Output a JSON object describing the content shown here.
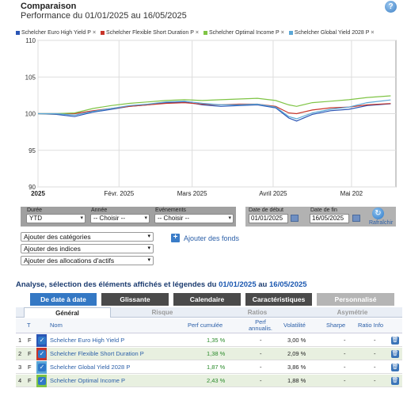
{
  "header": {
    "title": "Comparaison",
    "subtitle": "Performance du 01/01/2025 au 16/05/2025"
  },
  "legend": [
    {
      "name": "Schelcher Euro High Yield P",
      "color": "#2a55b5"
    },
    {
      "name": "Schelcher Flexible Short Duration P",
      "color": "#c8352a"
    },
    {
      "name": "Schelcher Optimal Income P",
      "color": "#7fc445"
    },
    {
      "name": "Schelcher Global Yield 2028 P",
      "color": "#5ba7d6"
    }
  ],
  "chart_data": {
    "type": "line",
    "ylim": [
      90,
      110
    ],
    "y_ticks": [
      "110",
      "105",
      "100",
      "95",
      "90"
    ],
    "x_ticks": [
      {
        "label": "2025",
        "bold": true
      },
      {
        "label": "Févr. 2025",
        "bold": false
      },
      {
        "label": "Mars 2025",
        "bold": false
      },
      {
        "label": "Avril 2025",
        "bold": false
      },
      {
        "label": "Mai 202",
        "bold": false
      }
    ],
    "grid": true,
    "x_dates": [
      "2025-01-01",
      "2025-01-08",
      "2025-01-15",
      "2025-01-22",
      "2025-01-29",
      "2025-02-05",
      "2025-02-12",
      "2025-02-19",
      "2025-02-26",
      "2025-03-05",
      "2025-03-12",
      "2025-03-19",
      "2025-03-26",
      "2025-04-02",
      "2025-04-07",
      "2025-04-10",
      "2025-04-16",
      "2025-04-23",
      "2025-04-30",
      "2025-05-07",
      "2025-05-16"
    ],
    "series": [
      {
        "name": "Schelcher Euro High Yield P",
        "color": "#2a55b5",
        "values": [
          100,
          99.9,
          99.6,
          100.2,
          100.6,
          101.0,
          101.2,
          101.5,
          101.6,
          101.2,
          101.0,
          101.1,
          101.2,
          100.8,
          99.4,
          99.0,
          99.9,
          100.4,
          100.6,
          101.1,
          101.35
        ]
      },
      {
        "name": "Schelcher Flexible Short Duration P",
        "color": "#c8352a",
        "values": [
          100,
          100.0,
          100.0,
          100.4,
          100.7,
          101.0,
          101.2,
          101.4,
          101.5,
          101.3,
          101.2,
          101.3,
          101.3,
          101.0,
          100.1,
          100.0,
          100.5,
          100.8,
          100.9,
          101.2,
          101.38
        ]
      },
      {
        "name": "Schelcher Optimal Income P",
        "color": "#7fc445",
        "values": [
          100,
          100.0,
          100.1,
          100.7,
          101.1,
          101.4,
          101.6,
          101.8,
          101.9,
          101.8,
          101.9,
          102.0,
          102.1,
          101.8,
          101.2,
          101.0,
          101.5,
          101.7,
          101.9,
          102.2,
          102.43
        ]
      },
      {
        "name": "Schelcher Global Yield 2028 P",
        "color": "#5ba7d6",
        "values": [
          100,
          100.0,
          99.8,
          100.3,
          100.7,
          101.1,
          101.3,
          101.6,
          101.7,
          101.4,
          101.2,
          101.2,
          101.3,
          100.9,
          99.6,
          99.3,
          100.1,
          100.6,
          100.9,
          101.5,
          101.87
        ]
      }
    ]
  },
  "controls": {
    "duree_label": "Durée",
    "duree_value": "YTD",
    "annee_label": "Année",
    "annee_value": "-- Choisir --",
    "evenements_label": "Evénements",
    "evenements_value": "-- Choisir --",
    "date_debut_label": "Date de début",
    "date_debut_value": "01/01/2025",
    "date_fin_label": "Date de fin",
    "date_fin_value": "16/05/2025",
    "refresh_label": "Rafraîchir"
  },
  "dropdowns": {
    "categories": "Ajouter des catégories",
    "indices": "Ajouter des indices",
    "allocations": "Ajouter des allocations d'actifs",
    "add_funds": "Ajouter des fonds"
  },
  "analyse": {
    "prefix": "Analyse, sélection des éléments affichés et légendes du",
    "start": "01/01/2025",
    "mid": "au",
    "end": "16/05/2025"
  },
  "tabs": [
    {
      "label": "De date à date",
      "color": "#3478c4"
    },
    {
      "label": "Glissante",
      "color": "#4a4a4a"
    },
    {
      "label": "Calendaire",
      "color": "#4a4a4a"
    },
    {
      "label": "Caractéristiques",
      "color": "#4a4a4a"
    },
    {
      "label": "Personnalisé",
      "color": "#b5b5b5"
    }
  ],
  "subtabs": [
    "Général",
    "Risque",
    "Ratios",
    "Asymétrie"
  ],
  "table": {
    "headers": {
      "t": "T",
      "nom": "Nom",
      "perf_cum": "Perf cumulée",
      "perf_ann": "Perf annualis.",
      "volatilite": "Volatilité",
      "sharpe": "Sharpe",
      "ratio_info": "Ratio Info"
    },
    "rows": [
      {
        "num": "1",
        "t": "F",
        "color": "#2a55b5",
        "nom": "Schelcher Euro High Yield P",
        "perf_cum": "1,35 %",
        "perf_ann": "-",
        "vol": "3,00 %",
        "sharpe": "-",
        "ratio": "-"
      },
      {
        "num": "2",
        "t": "F",
        "color": "#c8352a",
        "nom": "Schelcher Flexible Short Duration P",
        "perf_cum": "1,38 %",
        "perf_ann": "-",
        "vol": "2,09 %",
        "sharpe": "-",
        "ratio": "-"
      },
      {
        "num": "3",
        "t": "F",
        "color": "#5ba7d6",
        "nom": "Schelcher Global Yield 2028 P",
        "perf_cum": "1,87 %",
        "perf_ann": "-",
        "vol": "3,86 %",
        "sharpe": "-",
        "ratio": "-"
      },
      {
        "num": "4",
        "t": "F",
        "color": "#7fc445",
        "nom": "Schelcher Optimal Income P",
        "perf_cum": "2,43 %",
        "perf_ann": "-",
        "vol": "1,88 %",
        "sharpe": "-",
        "ratio": "-"
      }
    ]
  }
}
